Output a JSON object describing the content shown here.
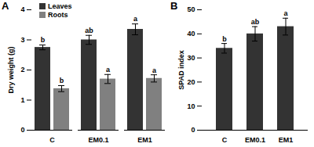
{
  "chart_data": [
    {
      "type": "bar",
      "title": "A",
      "y_label": "Dry weight (g)",
      "categories": [
        "C",
        "EM0.1",
        "EM1"
      ],
      "series": [
        {
          "name": "Leaves",
          "color": "#333333",
          "values": [
            2.75,
            3.0,
            3.35
          ],
          "errors": [
            0.08,
            0.15,
            0.18
          ],
          "annotations": [
            "b",
            "ab",
            "a"
          ]
        },
        {
          "name": "Roots",
          "color": "#808080",
          "values": [
            1.38,
            1.7,
            1.72
          ],
          "errors": [
            0.1,
            0.15,
            0.12
          ],
          "annotations": [
            "b",
            "a",
            "a"
          ]
        }
      ],
      "ylim": [
        0,
        4
      ],
      "yticks": [
        0,
        1,
        2,
        3,
        4
      ],
      "legend": "upper left"
    },
    {
      "type": "bar",
      "title": "B",
      "y_label": "SPAD index",
      "categories": [
        "C",
        "EM0.1",
        "EM1"
      ],
      "values": [
        34,
        40,
        43
      ],
      "errors": [
        2,
        3,
        3.5
      ],
      "annotations": [
        "b",
        "ab",
        "a"
      ],
      "color": "#333333",
      "ylim": [
        0,
        50
      ],
      "yticks": [
        0,
        10,
        20,
        30,
        40,
        50
      ]
    }
  ]
}
